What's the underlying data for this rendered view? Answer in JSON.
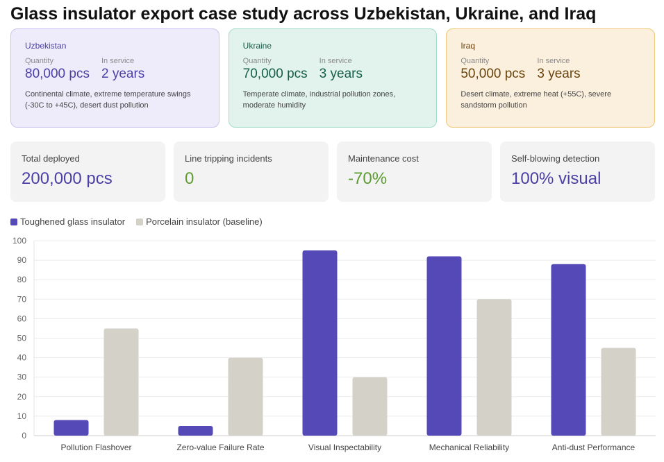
{
  "title": "Glass insulator export case study across Uzbekistan, Ukraine, and Iraq",
  "sites": [
    {
      "name": "Uzbekistan",
      "quantity_label": "Quantity",
      "quantity": "80,000 pcs",
      "service_label": "In service",
      "service": "2 years",
      "description": "Continental climate, extreme temperature swings (-30C to +45C), desert dust pollution"
    },
    {
      "name": "Ukraine",
      "quantity_label": "Quantity",
      "quantity": "70,000 pcs",
      "service_label": "In service",
      "service": "3 years",
      "description": "Temperate climate, industrial pollution zones, moderate humidity"
    },
    {
      "name": "Iraq",
      "quantity_label": "Quantity",
      "quantity": "50,000 pcs",
      "service_label": "In service",
      "service": "3 years",
      "description": "Desert climate, extreme heat (+55C), severe sandstorm pollution"
    }
  ],
  "metrics": [
    {
      "label": "Total deployed",
      "value": "200,000 pcs",
      "color": "#4a40a6"
    },
    {
      "label": "Line tripping incidents",
      "value": "0",
      "color": "#5e9d32"
    },
    {
      "label": "Maintenance cost",
      "value": "-70%",
      "color": "#5e9d32"
    },
    {
      "label": "Self-blowing detection",
      "value": "100% visual",
      "color": "#4a40a6"
    }
  ],
  "chart_data": {
    "type": "bar",
    "categories": [
      "Pollution Flashover",
      "Zero-value Failure Rate",
      "Visual Inspectability",
      "Mechanical Reliability",
      "Anti-dust Performance"
    ],
    "series": [
      {
        "name": "Toughened glass insulator",
        "color": "#5449b7",
        "values": [
          8,
          5,
          95,
          92,
          88
        ]
      },
      {
        "name": "Porcelain insulator (baseline)",
        "color": "#d4d1c8",
        "values": [
          55,
          40,
          30,
          70,
          45
        ]
      }
    ],
    "ylim": [
      0,
      100
    ],
    "yticks": [
      0,
      10,
      20,
      30,
      40,
      50,
      60,
      70,
      80,
      90,
      100
    ],
    "grid": true,
    "legend_position": "top-left"
  }
}
